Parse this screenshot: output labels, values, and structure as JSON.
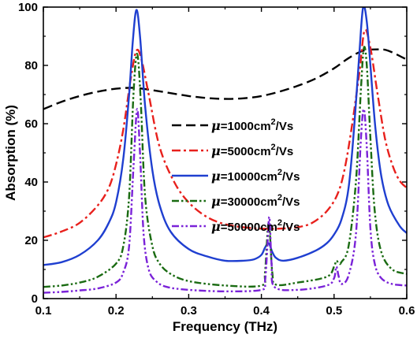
{
  "chart_data": {
    "type": "line",
    "xlabel": "Frequency (THz)",
    "ylabel": "Absorption (%)",
    "xlim": [
      0.1,
      0.6
    ],
    "ylim": [
      0,
      100
    ],
    "x_ticks": [
      "0.1",
      "0.2",
      "0.3",
      "0.4",
      "0.5",
      "0.6"
    ],
    "y_ticks": [
      "0",
      "20",
      "40",
      "60",
      "80",
      "100"
    ],
    "grid": false,
    "legend_position": "center",
    "series": [
      {
        "name": "μ=1000cm²/Vs",
        "legend": {
          "symbol": "μ",
          "eq": "=1000cm",
          "sup": "2",
          "unit": "/Vs"
        },
        "color": "#000000",
        "dash": "dash",
        "x": [
          0.1,
          0.125,
          0.15,
          0.175,
          0.2,
          0.225,
          0.25,
          0.275,
          0.3,
          0.325,
          0.35,
          0.375,
          0.4,
          0.425,
          0.45,
          0.475,
          0.5,
          0.52,
          0.54,
          0.56,
          0.575,
          0.6
        ],
        "y": [
          65,
          67.5,
          69.5,
          71,
          72,
          72.3,
          71.5,
          70.5,
          69.5,
          68.8,
          68.5,
          68.7,
          69.5,
          71,
          73,
          75.5,
          79,
          82.5,
          85,
          85.5,
          85,
          82
        ]
      },
      {
        "name": "μ=5000cm²/Vs",
        "legend": {
          "symbol": "μ",
          "eq": "=5000cm",
          "sup": "2",
          "unit": "/Vs"
        },
        "color": "#e8201c",
        "dash": "dashdot",
        "x": [
          0.1,
          0.125,
          0.15,
          0.175,
          0.19,
          0.2,
          0.21,
          0.22,
          0.228,
          0.235,
          0.245,
          0.26,
          0.28,
          0.3,
          0.325,
          0.35,
          0.375,
          0.4,
          0.425,
          0.45,
          0.47,
          0.49,
          0.505,
          0.515,
          0.525,
          0.535,
          0.542,
          0.55,
          0.56,
          0.57,
          0.58,
          0.59,
          0.6
        ],
        "y": [
          21,
          23,
          26,
          32,
          38,
          46,
          58,
          75,
          85,
          82,
          70,
          52,
          40,
          33,
          28,
          25.5,
          24.5,
          24,
          24,
          24.5,
          26,
          30,
          36,
          45,
          60,
          78,
          92,
          86,
          70,
          55,
          46,
          40.5,
          38
        ]
      },
      {
        "name": "μ=10000cm²/Vs",
        "legend": {
          "symbol": "μ",
          "eq": "=10000cm",
          "sup": "2",
          "unit": "/Vs"
        },
        "color": "#1f3fd0",
        "dash": "solid",
        "x": [
          0.1,
          0.125,
          0.15,
          0.175,
          0.19,
          0.2,
          0.21,
          0.218,
          0.223,
          0.228,
          0.233,
          0.24,
          0.25,
          0.26,
          0.275,
          0.3,
          0.325,
          0.35,
          0.375,
          0.39,
          0.4,
          0.405,
          0.41,
          0.415,
          0.42,
          0.43,
          0.45,
          0.475,
          0.49,
          0.5,
          0.51,
          0.52,
          0.528,
          0.535,
          0.54,
          0.545,
          0.55,
          0.557,
          0.565,
          0.575,
          0.59,
          0.6
        ],
        "y": [
          11.5,
          12.5,
          15,
          20,
          26,
          33,
          48,
          70,
          88,
          99,
          90,
          66,
          44,
          32,
          23,
          17,
          14.5,
          13,
          13,
          13.5,
          15,
          17.5,
          19,
          16,
          14,
          13,
          14,
          16.5,
          19,
          22,
          27,
          38,
          60,
          85,
          100,
          95,
          80,
          58,
          42,
          32,
          25,
          22.5
        ]
      },
      {
        "name": "μ=30000cm²/Vs",
        "legend": {
          "symbol": "μ",
          "eq": "=30000cm",
          "sup": "2",
          "unit": "/Vs"
        },
        "color": "#1a6b12",
        "dash": "dashdotdot",
        "x": [
          0.1,
          0.125,
          0.15,
          0.175,
          0.2,
          0.21,
          0.218,
          0.224,
          0.229,
          0.234,
          0.24,
          0.25,
          0.26,
          0.275,
          0.3,
          0.35,
          0.4,
          0.405,
          0.41,
          0.415,
          0.42,
          0.45,
          0.49,
          0.5,
          0.503,
          0.507,
          0.51,
          0.52,
          0.53,
          0.537,
          0.541,
          0.545,
          0.55,
          0.556,
          0.565,
          0.58,
          0.6
        ],
        "y": [
          4,
          4.5,
          5.5,
          7.5,
          12,
          18,
          35,
          70,
          84,
          68,
          35,
          18,
          12,
          8.5,
          6,
          4.5,
          4.5,
          9,
          26,
          9,
          4.8,
          5.5,
          7.5,
          11,
          13,
          12,
          12.5,
          18,
          40,
          72,
          86,
          80,
          55,
          30,
          16,
          10,
          8.5
        ]
      },
      {
        "name": "μ=50000cm²/Vs",
        "legend": {
          "symbol": "μ",
          "eq": "=50000cm",
          "sup": "2",
          "unit": "/Vs"
        },
        "color": "#7a22d8",
        "dash": "dashdotdot",
        "x": [
          0.1,
          0.125,
          0.15,
          0.175,
          0.2,
          0.21,
          0.218,
          0.224,
          0.229,
          0.233,
          0.238,
          0.245,
          0.255,
          0.27,
          0.3,
          0.35,
          0.4,
          0.405,
          0.408,
          0.411,
          0.414,
          0.418,
          0.45,
          0.49,
          0.5,
          0.503,
          0.506,
          0.51,
          0.52,
          0.53,
          0.537,
          0.541,
          0.545,
          0.55,
          0.556,
          0.565,
          0.58,
          0.6
        ],
        "y": [
          2,
          2.3,
          2.8,
          3.5,
          5.5,
          9,
          18,
          45,
          65,
          50,
          22,
          10,
          6,
          4,
          3,
          2.5,
          3,
          6,
          17,
          28,
          12,
          4,
          3,
          4.5,
          7,
          11,
          8,
          5,
          8,
          22,
          55,
          65,
          52,
          24,
          12,
          7,
          5,
          4.5
        ]
      }
    ]
  }
}
